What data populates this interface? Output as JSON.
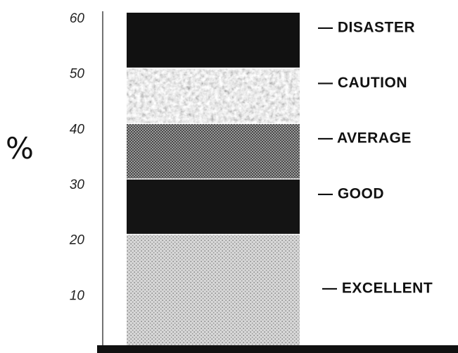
{
  "chart_data": {
    "type": "bar",
    "stacked": true,
    "ylabel": "%",
    "ylim": [
      0,
      60
    ],
    "yticks": [
      10,
      20,
      30,
      40,
      50,
      60
    ],
    "grid": false,
    "legend": "none",
    "bands": [
      {
        "label": "— EXCELLENT",
        "from": 0,
        "to": 20,
        "pattern": "light-dots",
        "color": "#c9c9c9"
      },
      {
        "label": "— GOOD",
        "from": 20,
        "to": 30,
        "pattern": "solid",
        "color": "#141414"
      },
      {
        "label": "— AVERAGE",
        "from": 30,
        "to": 40,
        "pattern": "crosshatch",
        "color": "#7d7d7d"
      },
      {
        "label": "— CAUTION",
        "from": 40,
        "to": 50,
        "pattern": "mottled",
        "color": "#b3b3b3"
      },
      {
        "label": "— DISASTER",
        "from": 50,
        "to": 60,
        "pattern": "solid",
        "color": "#111111"
      }
    ]
  }
}
